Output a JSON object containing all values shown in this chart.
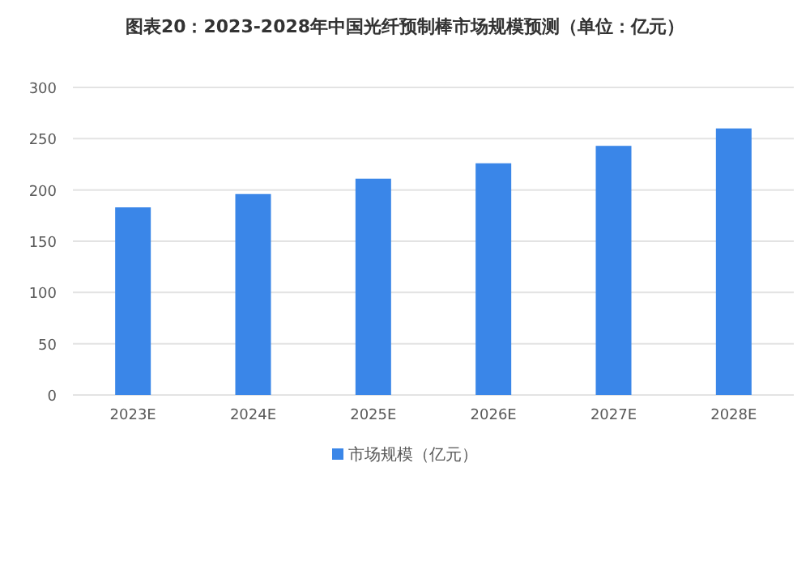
{
  "chart_data": {
    "type": "bar",
    "title": "图表20：2023-2028年中国光纤预制棒市场规模预测（单位：亿元）",
    "categories": [
      "2023E",
      "2024E",
      "2025E",
      "2026E",
      "2027E",
      "2028E"
    ],
    "series": [
      {
        "name": "市场规模（亿元）",
        "color": "#3a86e8",
        "values": [
          183,
          196,
          211,
          226,
          243,
          260
        ]
      }
    ],
    "ylim": [
      0,
      300
    ],
    "yticks": [
      0,
      50,
      100,
      150,
      200,
      250,
      300
    ],
    "grid": "y",
    "legend": "bottom"
  }
}
